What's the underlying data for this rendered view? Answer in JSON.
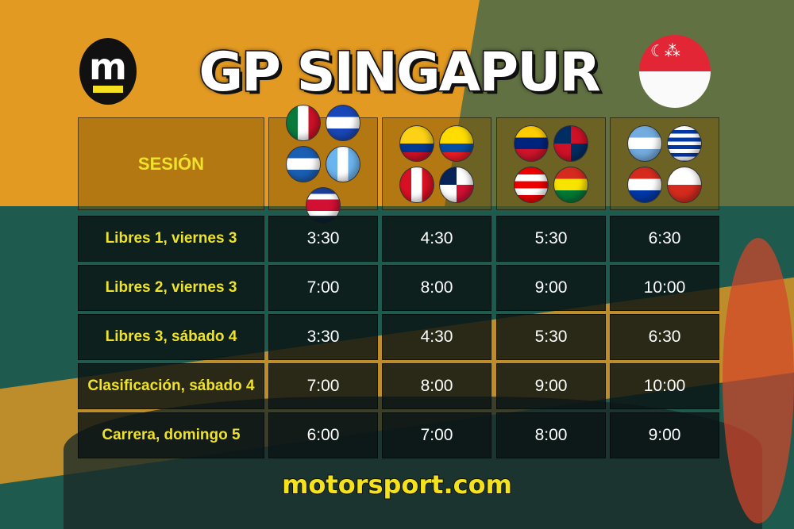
{
  "header": {
    "logo": "m",
    "title": "GP SINGAPUR",
    "flag": "singapore"
  },
  "table": {
    "session_header": "SESIÓN",
    "columns": [
      {
        "flags": [
          "mexico",
          "el-salvador",
          "honduras",
          "guatemala",
          "costa-rica"
        ]
      },
      {
        "flags": [
          "colombia",
          "ecuador",
          "peru",
          "panama"
        ]
      },
      {
        "flags": [
          "venezuela",
          "dominican-republic",
          "puerto-rico",
          "bolivia"
        ]
      },
      {
        "flags": [
          "argentina",
          "uruguay",
          "paraguay",
          "chile"
        ]
      }
    ],
    "rows": [
      {
        "session": "Libres 1, viernes 3",
        "times": [
          "3:30",
          "4:30",
          "5:30",
          "6:30"
        ]
      },
      {
        "session": "Libres 2, viernes 3",
        "times": [
          "7:00",
          "8:00",
          "9:00",
          "10:00"
        ]
      },
      {
        "session": "Libres 3, sábado 4",
        "times": [
          "3:30",
          "4:30",
          "5:30",
          "6:30"
        ]
      },
      {
        "session": "Clasificación, sábado 4",
        "times": [
          "7:00",
          "8:00",
          "9:00",
          "10:00"
        ]
      },
      {
        "session": "Carrera, domingo 5",
        "times": [
          "6:00",
          "7:00",
          "8:00",
          "9:00"
        ]
      }
    ]
  },
  "footer": {
    "brand": "motorsport.com"
  },
  "colors": {
    "background": "#e39a22",
    "teal": "#1f5a4e",
    "accent": "#f4e21c"
  }
}
